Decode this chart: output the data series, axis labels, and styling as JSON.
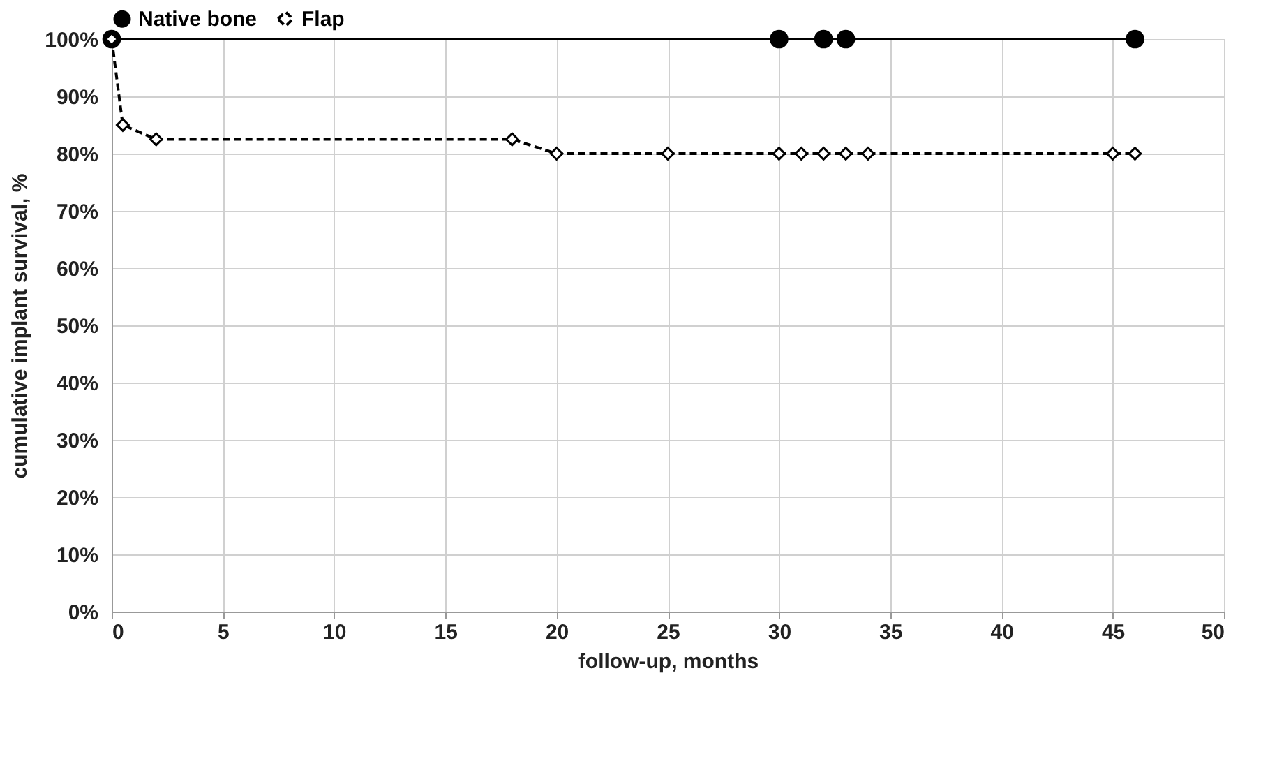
{
  "chart_data": {
    "type": "line",
    "xlabel": "follow-up, months",
    "ylabel": "cumulative implant survival, %",
    "xlim": [
      0,
      50
    ],
    "xticks": [
      0,
      5,
      10,
      15,
      20,
      25,
      30,
      35,
      40,
      45,
      50
    ],
    "ylim": [
      0,
      100
    ],
    "yticks": [
      {
        "value": 0,
        "label": "0%"
      },
      {
        "value": 10,
        "label": "10%"
      },
      {
        "value": 20,
        "label": "20%"
      },
      {
        "value": 30,
        "label": "30%"
      },
      {
        "value": 40,
        "label": "40%"
      },
      {
        "value": 50,
        "label": "50%"
      },
      {
        "value": 60,
        "label": "60%"
      },
      {
        "value": 70,
        "label": "70%"
      },
      {
        "value": 80,
        "label": "80%"
      },
      {
        "value": 90,
        "label": "90%"
      },
      {
        "value": 100,
        "label": "100%"
      }
    ],
    "grid": true,
    "legend": "top",
    "series": [
      {
        "name": "Native bone",
        "color": "#000000",
        "marker": "circle",
        "line_style": "solid",
        "x": [
          0,
          30,
          32,
          33,
          46
        ],
        "values": [
          100,
          100,
          100,
          100,
          100
        ]
      },
      {
        "name": "Flap",
        "color": "#000000",
        "marker": "diamond",
        "line_style": "dashed",
        "x": [
          0,
          0.5,
          2,
          18,
          20,
          25,
          30,
          31,
          32,
          33,
          34,
          45,
          46
        ],
        "values": [
          100,
          85,
          82.5,
          82.5,
          80,
          80,
          80,
          80,
          80,
          80,
          80,
          80,
          80
        ]
      }
    ]
  }
}
